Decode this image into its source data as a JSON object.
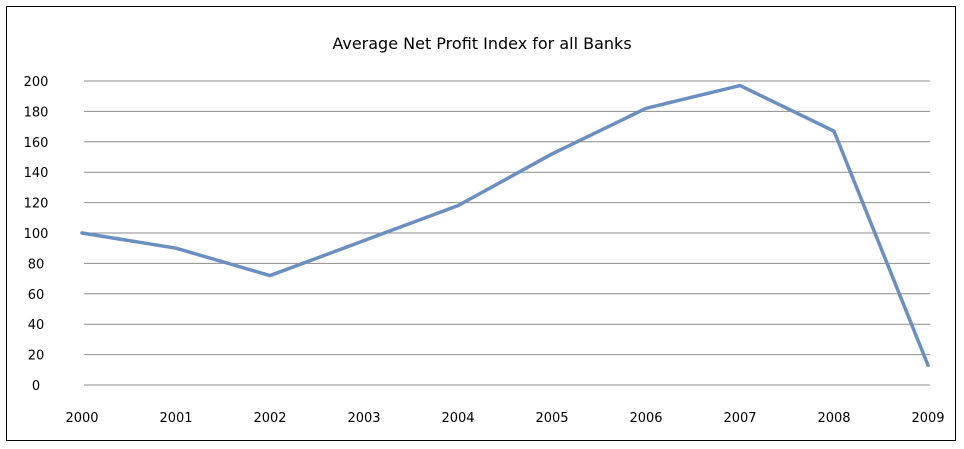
{
  "chart_data": {
    "type": "line",
    "title": "Average Net Profit Index for all Banks",
    "xlabel": "",
    "ylabel": "",
    "x": [
      "2000",
      "2001",
      "2002",
      "2003",
      "2004",
      "2005",
      "2006",
      "2007",
      "2008",
      "2009"
    ],
    "yticks": [
      "0",
      "20",
      "40",
      "60",
      "80",
      "100",
      "120",
      "140",
      "160",
      "180",
      "200"
    ],
    "ylim": [
      0,
      200
    ],
    "grid": true,
    "legend": "none",
    "series": [
      {
        "color": "#6a8fc0",
        "values": [
          100,
          90,
          72,
          95,
          118,
          152,
          182,
          197,
          167,
          13
        ]
      }
    ]
  }
}
